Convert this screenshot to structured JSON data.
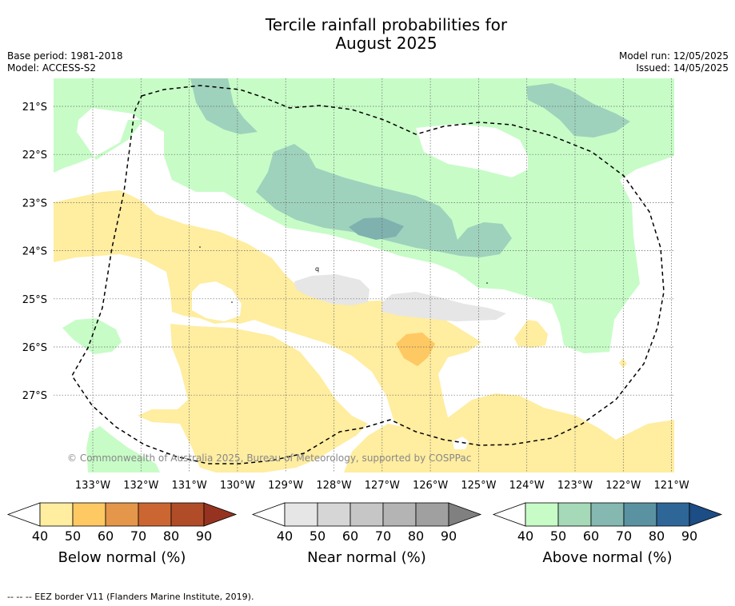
{
  "title": {
    "line1": "Tercile rainfall probabilities for",
    "line2": "August 2025"
  },
  "meta": {
    "base_period": "Base period: 1981-2018",
    "model": "Model: ACCESS-S2",
    "model_run": "Model run: 12/05/2025",
    "issued": "Issued: 14/05/2025"
  },
  "map": {
    "copyright": "© Commonwealth of Australia 2025, Bureau of Meteorology, supported by COSPPac",
    "lon_labels": [
      "133°W",
      "132°W",
      "131°W",
      "130°W",
      "129°W",
      "128°W",
      "127°W",
      "126°W",
      "125°W",
      "124°W",
      "123°W",
      "122°W",
      "121°W"
    ],
    "lat_labels": [
      "21°S",
      "22°S",
      "23°S",
      "24°S",
      "25°S",
      "26°S",
      "27°S"
    ],
    "colors": {
      "below_50": "#ffeda0",
      "below_60": "#fec863",
      "near_50": "#e6e6e6",
      "above_50": "#c7fcc7",
      "above_60": "#9ed2bc",
      "above_70": "#7fb2ae"
    }
  },
  "colorbars": [
    {
      "title": "Below normal (%)",
      "ticks": [
        "40",
        "50",
        "60",
        "70",
        "80",
        "90"
      ],
      "colors": [
        "#ffeda0",
        "#fec863",
        "#e4964b",
        "#cb6632",
        "#b14c28",
        "#963320"
      ]
    },
    {
      "title": "Near normal (%)",
      "ticks": [
        "40",
        "50",
        "60",
        "70",
        "80",
        "90"
      ],
      "colors": [
        "#e6e6e6",
        "#d6d6d6",
        "#c6c6c6",
        "#b4b4b4",
        "#a0a0a0",
        "#808080"
      ]
    },
    {
      "title": "Above normal (%)",
      "ticks": [
        "40",
        "50",
        "60",
        "70",
        "80",
        "90"
      ],
      "colors": [
        "#c7fcc7",
        "#a5d9b7",
        "#84b8b0",
        "#5b92a2",
        "#2f6698",
        "#1c4d84"
      ]
    }
  ],
  "footer": "--  --  -- EEZ border V11 (Flanders Marine Institute, 2019)."
}
